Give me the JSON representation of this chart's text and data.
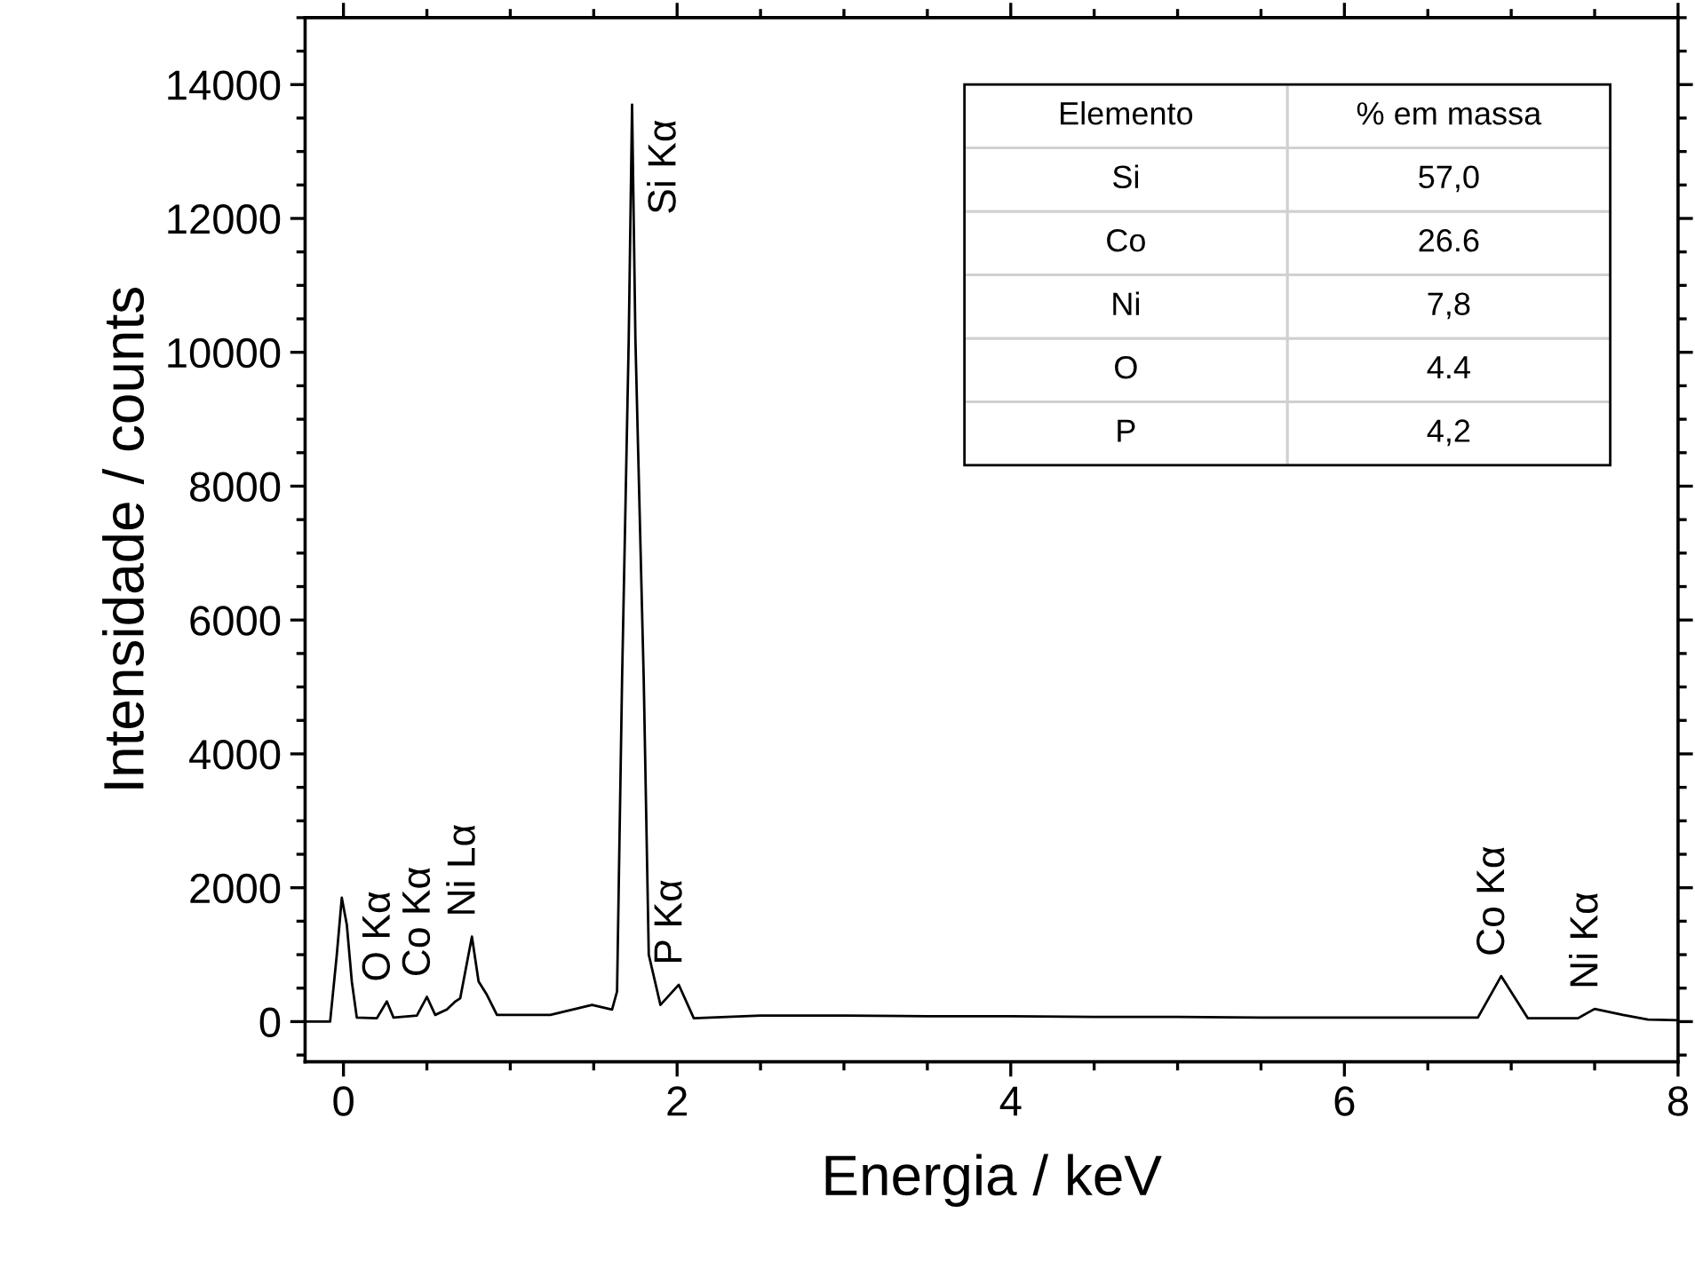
{
  "chart_data": [
    {
      "type": "line",
      "xlabel": "Energia / keV",
      "ylabel": "Intensidade / counts",
      "xlim": [
        -0.23,
        8
      ],
      "ylim": [
        -600,
        15000
      ],
      "xticks": [
        0,
        2,
        4,
        6,
        8
      ],
      "yticks": [
        0,
        2000,
        4000,
        6000,
        8000,
        10000,
        12000,
        14000
      ],
      "grid": false,
      "legend": false,
      "marker": "none",
      "line_style": "solid",
      "series": [
        {
          "color": "#000000",
          "x": [
            -0.22,
            -0.08,
            -0.04,
            -0.01,
            0.02,
            0.05,
            0.08,
            0.2,
            0.26,
            0.3,
            0.44,
            0.5,
            0.55,
            0.62,
            0.67,
            0.7,
            0.77,
            0.81,
            0.86,
            0.92,
            1.24,
            1.49,
            1.61,
            1.64,
            1.67,
            1.71,
            1.73,
            1.75,
            1.8,
            1.83,
            1.9,
            2.01,
            2.1,
            2.5,
            3.0,
            3.5,
            4.0,
            4.5,
            5.0,
            5.5,
            6.0,
            6.5,
            6.8,
            6.94,
            7.1,
            7.4,
            7.5,
            7.67,
            7.82,
            8.0
          ],
          "values": [
            0,
            0,
            1000,
            1850,
            1450,
            600,
            60,
            50,
            300,
            60,
            90,
            370,
            100,
            180,
            300,
            350,
            1270,
            600,
            400,
            100,
            100,
            250,
            180,
            450,
            5100,
            10200,
            13700,
            10200,
            5100,
            1000,
            250,
            550,
            50,
            90,
            90,
            80,
            80,
            70,
            70,
            60,
            60,
            60,
            60,
            680,
            50,
            50,
            190,
            100,
            30,
            20
          ]
        }
      ],
      "annotations": [
        {
          "text": "O Kα",
          "x": 0.26,
          "y": 300
        },
        {
          "text": "Co Kα",
          "x": 0.5,
          "y": 370
        },
        {
          "text": "Ni Lα",
          "x": 0.77,
          "y": 1270
        },
        {
          "text": "Si Kα",
          "x": 1.73,
          "y": 13700
        },
        {
          "text": "P Kα",
          "x": 2.01,
          "y": 550
        },
        {
          "text": "Co Kα",
          "x": 6.94,
          "y": 680
        },
        {
          "text": "Ni Kα",
          "x": 7.5,
          "y": 190
        }
      ]
    },
    {
      "type": "other",
      "annotations": [
        "Elemento",
        "% em massa",
        "Si",
        "57,0",
        "Co",
        "26.6",
        "Ni",
        "7,8",
        "O",
        "4.4",
        "P",
        "4,2"
      ]
    }
  ]
}
